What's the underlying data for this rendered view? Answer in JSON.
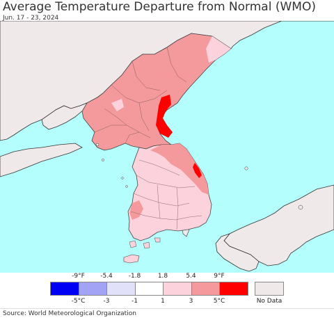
{
  "title": "Average Temperature Departure from Normal (WMO)",
  "date_range": "Jun. 17 - 23, 2024",
  "source": "Source: World Meteorological Organization",
  "colors": {
    "ocean": "#b4fefe",
    "land_nodata": "#efe9ea",
    "border": "#6e6e6e",
    "coast": "#333333"
  },
  "legend": {
    "bins": [
      {
        "color": "#0000f5"
      },
      {
        "color": "#a3a3f5"
      },
      {
        "color": "#e1e1fa"
      },
      {
        "color": "#ffffff"
      },
      {
        "color": "#fcd2dc"
      },
      {
        "color": "#f49a9c"
      },
      {
        "color": "#ff0000"
      }
    ],
    "f_labels": [
      "-9°F",
      "-5.4",
      "-1.8",
      "1.8",
      "5.4",
      "9°F"
    ],
    "c_labels": [
      "-5°C",
      "-3",
      "-1",
      "1",
      "3",
      "5°C"
    ],
    "nodata_label": "No Data"
  }
}
